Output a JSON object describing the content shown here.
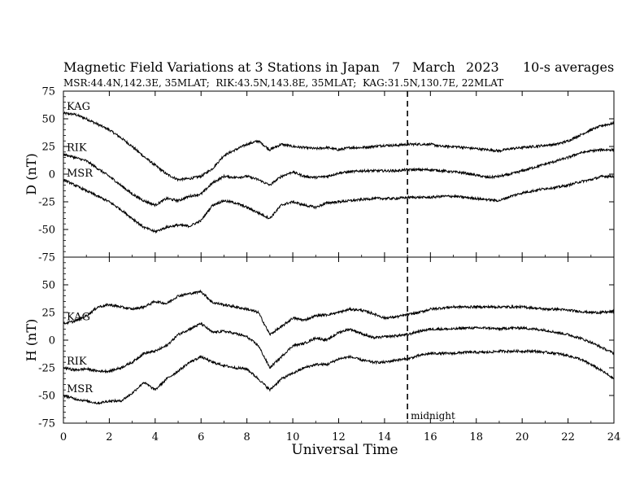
{
  "chart_data": {
    "type": "line",
    "title": "Magnetic Field Variations at 3 Stations in Japan",
    "date": {
      "day": "7",
      "month": "March",
      "year": "2023"
    },
    "averaging": "10-s averages",
    "subtitle": "MSR:44.4N,142.3E, 35MLAT;  RIK:43.5N,143.8E, 35MLAT;  KAG:31.5N,130.7E, 22MLAT",
    "xlabel": "Universal Time",
    "xlim": [
      0,
      24
    ],
    "xticks": [
      "0",
      "2",
      "4",
      "6",
      "8",
      "10",
      "12",
      "14",
      "16",
      "18",
      "20",
      "22",
      "24"
    ],
    "midnight_marker": {
      "x": 15,
      "label": "midnight"
    },
    "panels": [
      {
        "ylabel": "D (nT)",
        "ylim": [
          -75,
          75
        ],
        "yticks": [
          "75",
          "50",
          "25",
          "0",
          "-25",
          "-50",
          "-75"
        ],
        "series": [
          {
            "name": "KAG",
            "x": [
              0,
              0.5,
              1,
              1.5,
              2,
              2.5,
              3,
              3.5,
              4,
              4.5,
              5,
              5.5,
              6,
              6.5,
              7,
              7.5,
              8,
              8.5,
              9,
              9.5,
              10,
              10.5,
              11,
              11.5,
              12,
              12.5,
              13,
              13.5,
              14,
              14.5,
              15,
              15.5,
              16,
              16.5,
              17,
              17.5,
              18,
              18.5,
              19,
              19.5,
              20,
              20.5,
              21,
              21.5,
              22,
              22.5,
              23,
              23.5,
              24
            ],
            "y": [
              55,
              54,
              50,
              45,
              40,
              33,
              25,
              16,
              8,
              0,
              -5,
              -4,
              -2,
              5,
              17,
              22,
              27,
              30,
              22,
              27,
              25,
              24,
              23,
              24,
              22,
              24,
              24,
              25,
              26,
              26,
              27,
              27,
              27,
              25,
              25,
              24,
              23,
              22,
              21,
              23,
              24,
              25,
              26,
              27,
              30,
              35,
              40,
              44,
              46
            ]
          },
          {
            "name": "RIK",
            "x": [
              0,
              0.5,
              1,
              1.5,
              2,
              2.5,
              3,
              3.5,
              4,
              4.5,
              5,
              5.5,
              6,
              6.5,
              7,
              7.5,
              8,
              8.5,
              9,
              9.5,
              10,
              10.5,
              11,
              11.5,
              12,
              12.5,
              13,
              13.5,
              14,
              14.5,
              15,
              15.5,
              16,
              16.5,
              17,
              17.5,
              18,
              18.5,
              19,
              19.5,
              20,
              20.5,
              21,
              21.5,
              22,
              22.5,
              23,
              23.5,
              24
            ],
            "y": [
              18,
              15,
              12,
              5,
              -2,
              -10,
              -18,
              -24,
              -28,
              -22,
              -24,
              -20,
              -18,
              -8,
              -2,
              -3,
              -2,
              -5,
              -10,
              -2,
              2,
              -2,
              -3,
              -2,
              1,
              2,
              3,
              3,
              3,
              3,
              4,
              4,
              4,
              3,
              2,
              1,
              -1,
              -3,
              -2,
              0,
              3,
              6,
              9,
              12,
              15,
              19,
              21,
              22,
              22
            ]
          },
          {
            "name": "MSR",
            "x": [
              0,
              0.5,
              1,
              1.5,
              2,
              2.5,
              3,
              3.5,
              4,
              4.5,
              5,
              5.5,
              6,
              6.5,
              7,
              7.5,
              8,
              8.5,
              9,
              9.5,
              10,
              10.5,
              11,
              11.5,
              12,
              12.5,
              13,
              13.5,
              14,
              14.5,
              15,
              15.5,
              16,
              16.5,
              17,
              17.5,
              18,
              18.5,
              19,
              19.5,
              20,
              20.5,
              21,
              21.5,
              22,
              22.5,
              23,
              23.5,
              24
            ],
            "y": [
              -5,
              -10,
              -15,
              -20,
              -25,
              -32,
              -40,
              -48,
              -52,
              -48,
              -46,
              -47,
              -42,
              -28,
              -24,
              -26,
              -30,
              -35,
              -40,
              -28,
              -25,
              -28,
              -30,
              -26,
              -25,
              -24,
              -23,
              -22,
              -22,
              -22,
              -21,
              -21,
              -21,
              -20,
              -20,
              -21,
              -22,
              -23,
              -24,
              -20,
              -17,
              -15,
              -13,
              -12,
              -10,
              -7,
              -5,
              -2,
              -2
            ]
          }
        ]
      },
      {
        "ylabel": "H (nT)",
        "ylim": [
          -75,
          75
        ],
        "yticks": [
          "75",
          "50",
          "25",
          "0",
          "-25",
          "-50",
          "-75"
        ],
        "series": [
          {
            "name": "KAG",
            "x": [
              0,
              0.5,
              1,
              1.5,
              2,
              2.5,
              3,
              3.5,
              4,
              4.5,
              5,
              5.5,
              6,
              6.5,
              7,
              7.5,
              8,
              8.5,
              9,
              9.5,
              10,
              10.5,
              11,
              11.5,
              12,
              12.5,
              13,
              13.5,
              14,
              14.5,
              15,
              15.5,
              16,
              16.5,
              17,
              17.5,
              18,
              18.5,
              19,
              19.5,
              20,
              20.5,
              21,
              21.5,
              22,
              22.5,
              23,
              23.5,
              24
            ],
            "y": [
              15,
              17,
              22,
              30,
              32,
              30,
              28,
              30,
              35,
              33,
              40,
              42,
              44,
              34,
              32,
              30,
              28,
              25,
              5,
              12,
              20,
              18,
              22,
              23,
              25,
              28,
              27,
              24,
              20,
              21,
              23,
              25,
              28,
              29,
              30,
              30,
              30,
              30,
              30,
              30,
              30,
              29,
              28,
              28,
              27,
              26,
              25,
              25,
              26
            ]
          },
          {
            "name": "RIK",
            "x": [
              0,
              0.5,
              1,
              1.5,
              2,
              2.5,
              3,
              3.5,
              4,
              4.5,
              5,
              5.5,
              6,
              6.5,
              7,
              7.5,
              8,
              8.5,
              9,
              9.5,
              10,
              10.5,
              11,
              11.5,
              12,
              12.5,
              13,
              13.5,
              14,
              14.5,
              15,
              15.5,
              16,
              16.5,
              17,
              17.5,
              18,
              18.5,
              19,
              19.5,
              20,
              20.5,
              21,
              21.5,
              22,
              22.5,
              23,
              23.5,
              24
            ],
            "y": [
              -25,
              -27,
              -26,
              -28,
              -28,
              -25,
              -20,
              -12,
              -10,
              -5,
              5,
              10,
              15,
              7,
              8,
              6,
              3,
              -5,
              -25,
              -15,
              -5,
              -3,
              2,
              0,
              7,
              10,
              6,
              2,
              3,
              4,
              5,
              8,
              10,
              10,
              10,
              11,
              11,
              11,
              10,
              11,
              11,
              10,
              9,
              7,
              5,
              2,
              -2,
              -7,
              -12
            ]
          },
          {
            "name": "MSR",
            "x": [
              0,
              0.5,
              1,
              1.5,
              2,
              2.5,
              3,
              3.5,
              4,
              4.5,
              5,
              5.5,
              6,
              6.5,
              7,
              7.5,
              8,
              8.5,
              9,
              9.5,
              10,
              10.5,
              11,
              11.5,
              12,
              12.5,
              13,
              13.5,
              14,
              14.5,
              15,
              15.5,
              16,
              16.5,
              17,
              17.5,
              18,
              18.5,
              19,
              19.5,
              20,
              20.5,
              21,
              21.5,
              22,
              22.5,
              23,
              23.5,
              24
            ],
            "y": [
              -50,
              -53,
              -55,
              -57,
              -55,
              -55,
              -48,
              -38,
              -45,
              -35,
              -28,
              -20,
              -15,
              -20,
              -23,
              -25,
              -26,
              -35,
              -45,
              -35,
              -30,
              -25,
              -22,
              -22,
              -17,
              -15,
              -18,
              -20,
              -20,
              -18,
              -17,
              -14,
              -12,
              -12,
              -12,
              -11,
              -11,
              -11,
              -10,
              -10,
              -10,
              -10,
              -11,
              -12,
              -14,
              -17,
              -22,
              -28,
              -35
            ]
          }
        ]
      }
    ]
  }
}
